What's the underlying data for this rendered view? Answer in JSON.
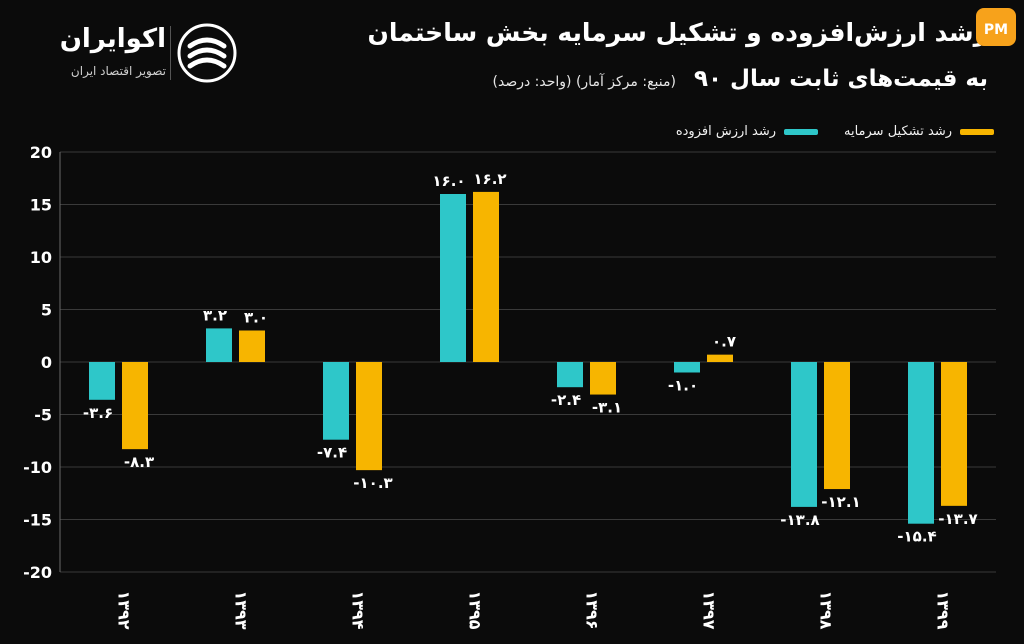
{
  "brand": {
    "name": "اکوایران",
    "subtitle": "تصویر اقتصاد ایران"
  },
  "header": {
    "title_line1": "رشد ارزش‌افزوده و تشکیل سرمایه بخش ساختمان",
    "title_line2": "به قیمت‌های ثابت سال ۹۰",
    "note": "(منبع: مرکز آمار)  (واحد: درصد)"
  },
  "colors": {
    "background": "#0b0b0b",
    "value_added": "#2ec7c9",
    "capital_formation": "#f7b500",
    "grid": "#3a3a3a",
    "text": "#ffffff"
  },
  "chart_data": {
    "type": "bar",
    "categories": [
      "۱۳۹۲",
      "۱۳۹۳",
      "۱۳۹۴",
      "۱۳۹۵",
      "۱۳۹۶",
      "۱۳۹۷",
      "۱۳۹۸",
      "۱۳۹۹"
    ],
    "series": [
      {
        "name": "رشد ارزش افزوده",
        "values": [
          -3.6,
          3.2,
          -7.4,
          16.0,
          -2.4,
          -1.0,
          -13.8,
          -15.4
        ],
        "labels": [
          "-۳.۶",
          "۳.۲",
          "-۷.۴",
          "۱۶.۰",
          "-۲.۴",
          "-۱.۰",
          "-۱۳.۸",
          "-۱۵.۴"
        ],
        "color": "#2ec7c9"
      },
      {
        "name": "رشد تشکیل سرمایه",
        "values": [
          -8.3,
          3.0,
          -10.3,
          16.2,
          -3.1,
          0.7,
          -12.1,
          -13.7
        ],
        "labels": [
          "-۸.۳",
          "۳.۰",
          "-۱۰.۳",
          "۱۶.۲",
          "-۳.۱",
          "۰.۷",
          "-۱۲.۱",
          "-۱۳.۷"
        ],
        "color": "#f7b500"
      }
    ],
    "yticks": [
      20,
      15,
      10,
      5,
      0,
      -5,
      -10,
      -15,
      -20
    ],
    "ytick_labels": [
      "20",
      "15",
      "10",
      "5",
      "0",
      "-5",
      "-10",
      "-15",
      "-20"
    ],
    "ylim": [
      -20,
      20
    ],
    "grid": true,
    "legend_position": "top-right"
  }
}
